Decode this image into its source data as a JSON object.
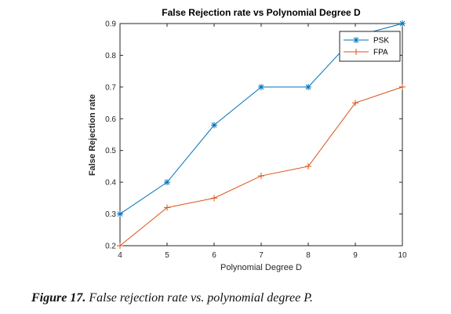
{
  "chart_data": {
    "type": "line",
    "title": "False Rejection rate vs Polynomial Degree D",
    "xlabel": "Polynomial Degree D",
    "ylabel": "False Rejection rate",
    "x": [
      4,
      5,
      6,
      7,
      8,
      9,
      10
    ],
    "xlim": [
      4,
      10
    ],
    "ylim": [
      0.2,
      0.9
    ],
    "xticks": [
      "4",
      "5",
      "6",
      "7",
      "8",
      "9",
      "10"
    ],
    "yticks": [
      "0.2",
      "0.3",
      "0.4",
      "0.5",
      "0.6",
      "0.7",
      "0.8",
      "0.9"
    ],
    "grid": false,
    "legend_position": "top-right",
    "series": [
      {
        "name": "PSK",
        "values": [
          0.3,
          0.4,
          0.58,
          0.7,
          0.7,
          0.86,
          0.9
        ],
        "color": "#0072BD",
        "marker": "asterisk"
      },
      {
        "name": "FPA",
        "values": [
          0.2,
          0.32,
          0.35,
          0.42,
          0.45,
          0.65,
          0.7
        ],
        "color": "#D95319",
        "marker": "plus"
      }
    ]
  },
  "caption": {
    "label": "Figure 17.",
    "text": "False rejection rate vs. polynomial degree P."
  }
}
